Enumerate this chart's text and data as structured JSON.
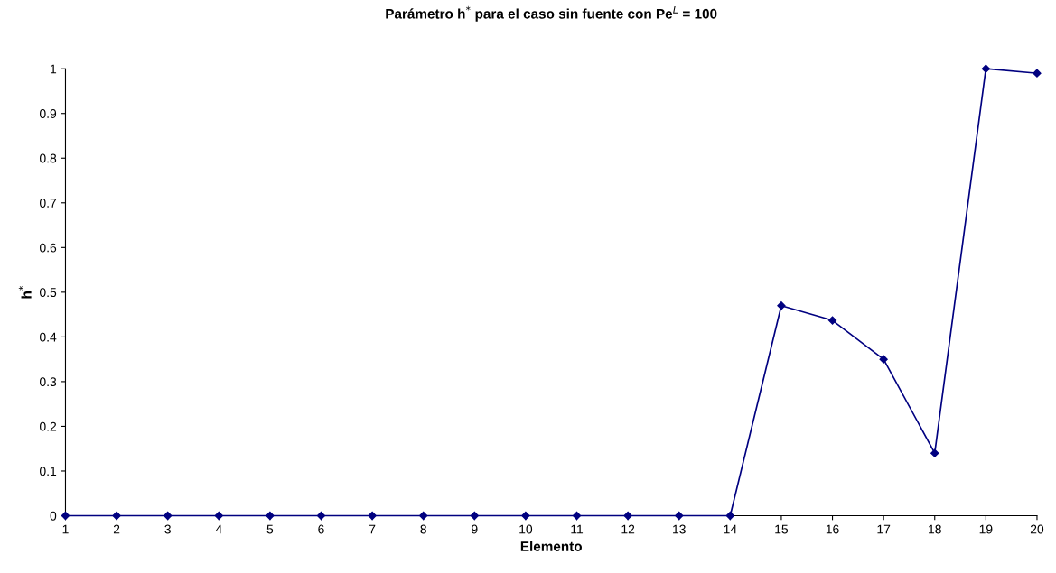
{
  "chart_data": {
    "type": "line",
    "title": "Parámetro h$^{*}$ para el caso sin fuente con Pe$^{L}$ = 100",
    "xlabel": "Elemento",
    "ylabel": "h$^{*}$",
    "categories": [
      "1",
      "2",
      "3",
      "4",
      "5",
      "6",
      "7",
      "8",
      "9",
      "10",
      "11",
      "12",
      "13",
      "14",
      "15",
      "16",
      "17",
      "18",
      "19",
      "20"
    ],
    "series": [
      {
        "color": "#000080",
        "values": [
          0,
          0,
          0,
          0,
          0,
          0,
          0,
          0,
          0,
          0,
          0,
          0,
          0,
          0,
          0.47,
          0.437,
          0.35,
          0.14,
          1.0,
          0.99
        ]
      }
    ],
    "ylim": [
      0,
      1
    ],
    "yticks": [
      0,
      0.1,
      0.2,
      0.3,
      0.4,
      0.5,
      0.6,
      0.7,
      0.8,
      0.9,
      1
    ],
    "marker": "diamond",
    "line_style": "solid",
    "grid": false,
    "legend": false
  }
}
